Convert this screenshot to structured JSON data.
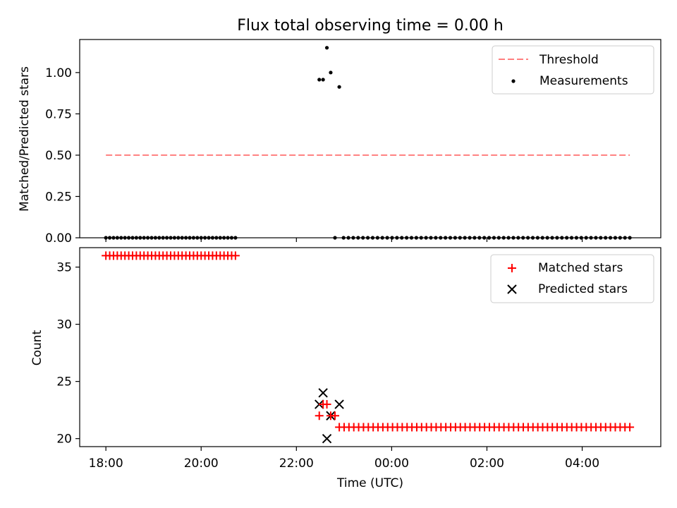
{
  "chart_data": [
    {
      "type": "scatter",
      "title": "Flux total observing time = 0.00 h",
      "xlabel": "",
      "ylabel": "Matched/Predicted stars",
      "x_unit": "hours after 18:00 UTC",
      "xlim": [
        -0.55,
        11.65
      ],
      "ylim": [
        0,
        1.2
      ],
      "yticks": [
        0.0,
        0.25,
        0.5,
        0.75,
        1.0
      ],
      "ytick_labels": [
        "0.00",
        "0.25",
        "0.50",
        "0.75",
        "1.00"
      ],
      "threshold": {
        "name": "Threshold",
        "value": 0.5,
        "x_range": [
          0.0,
          11.0
        ],
        "color": "#ff7f7f"
      },
      "series": [
        {
          "name": "Measurements",
          "color": "#000000",
          "marker": "dot",
          "segments": [
            {
              "x_start": 0.0,
              "x_end": 2.72,
              "count": 35,
              "y": 0.0
            }
          ],
          "points": [
            {
              "x": 4.48,
              "y": 0.957
            },
            {
              "x": 4.56,
              "y": 0.957
            },
            {
              "x": 4.64,
              "y": 1.15
            },
            {
              "x": 4.72,
              "y": 1.0
            },
            {
              "x": 4.9,
              "y": 0.913
            },
            {
              "x": 4.81,
              "y": 0.0
            }
          ],
          "segments_after": [
            {
              "x_start": 4.99,
              "x_end": 11.0,
              "count": 60,
              "y": 0.0
            }
          ]
        }
      ],
      "legend": {
        "placement": "top-right",
        "entries": [
          "Threshold",
          "Measurements"
        ]
      }
    },
    {
      "type": "scatter",
      "title": "",
      "xlabel": "Time (UTC)",
      "ylabel": "Count",
      "xlim": [
        -0.55,
        11.65
      ],
      "ylim": [
        19.3,
        36.7
      ],
      "yticks": [
        20,
        25,
        30,
        35
      ],
      "ytick_labels": [
        "20",
        "25",
        "30",
        "35"
      ],
      "xticks": [
        0,
        2,
        4,
        6,
        8,
        10
      ],
      "xtick_labels": [
        "18:00",
        "20:00",
        "22:00",
        "00:00",
        "02:00",
        "04:00"
      ],
      "series": [
        {
          "name": "Matched stars",
          "color": "#ff0000",
          "marker": "plus",
          "segments": [
            {
              "x_start": 0.0,
              "x_end": 2.72,
              "count": 35,
              "y": 36
            },
            {
              "x_start": 4.9,
              "x_end": 11.0,
              "count": 61,
              "y": 21
            }
          ],
          "points": [
            {
              "x": 4.48,
              "y": 22
            },
            {
              "x": 4.56,
              "y": 23
            },
            {
              "x": 4.64,
              "y": 23
            },
            {
              "x": 4.72,
              "y": 22
            },
            {
              "x": 4.81,
              "y": 22
            }
          ]
        },
        {
          "name": "Predicted stars",
          "color": "#000000",
          "marker": "x",
          "points": [
            {
              "x": 4.48,
              "y": 23
            },
            {
              "x": 4.56,
              "y": 24
            },
            {
              "x": 4.64,
              "y": 20
            },
            {
              "x": 4.72,
              "y": 22
            },
            {
              "x": 4.9,
              "y": 23
            }
          ]
        }
      ],
      "legend": {
        "placement": "top-right",
        "entries": [
          "Matched stars",
          "Predicted stars"
        ]
      }
    }
  ]
}
